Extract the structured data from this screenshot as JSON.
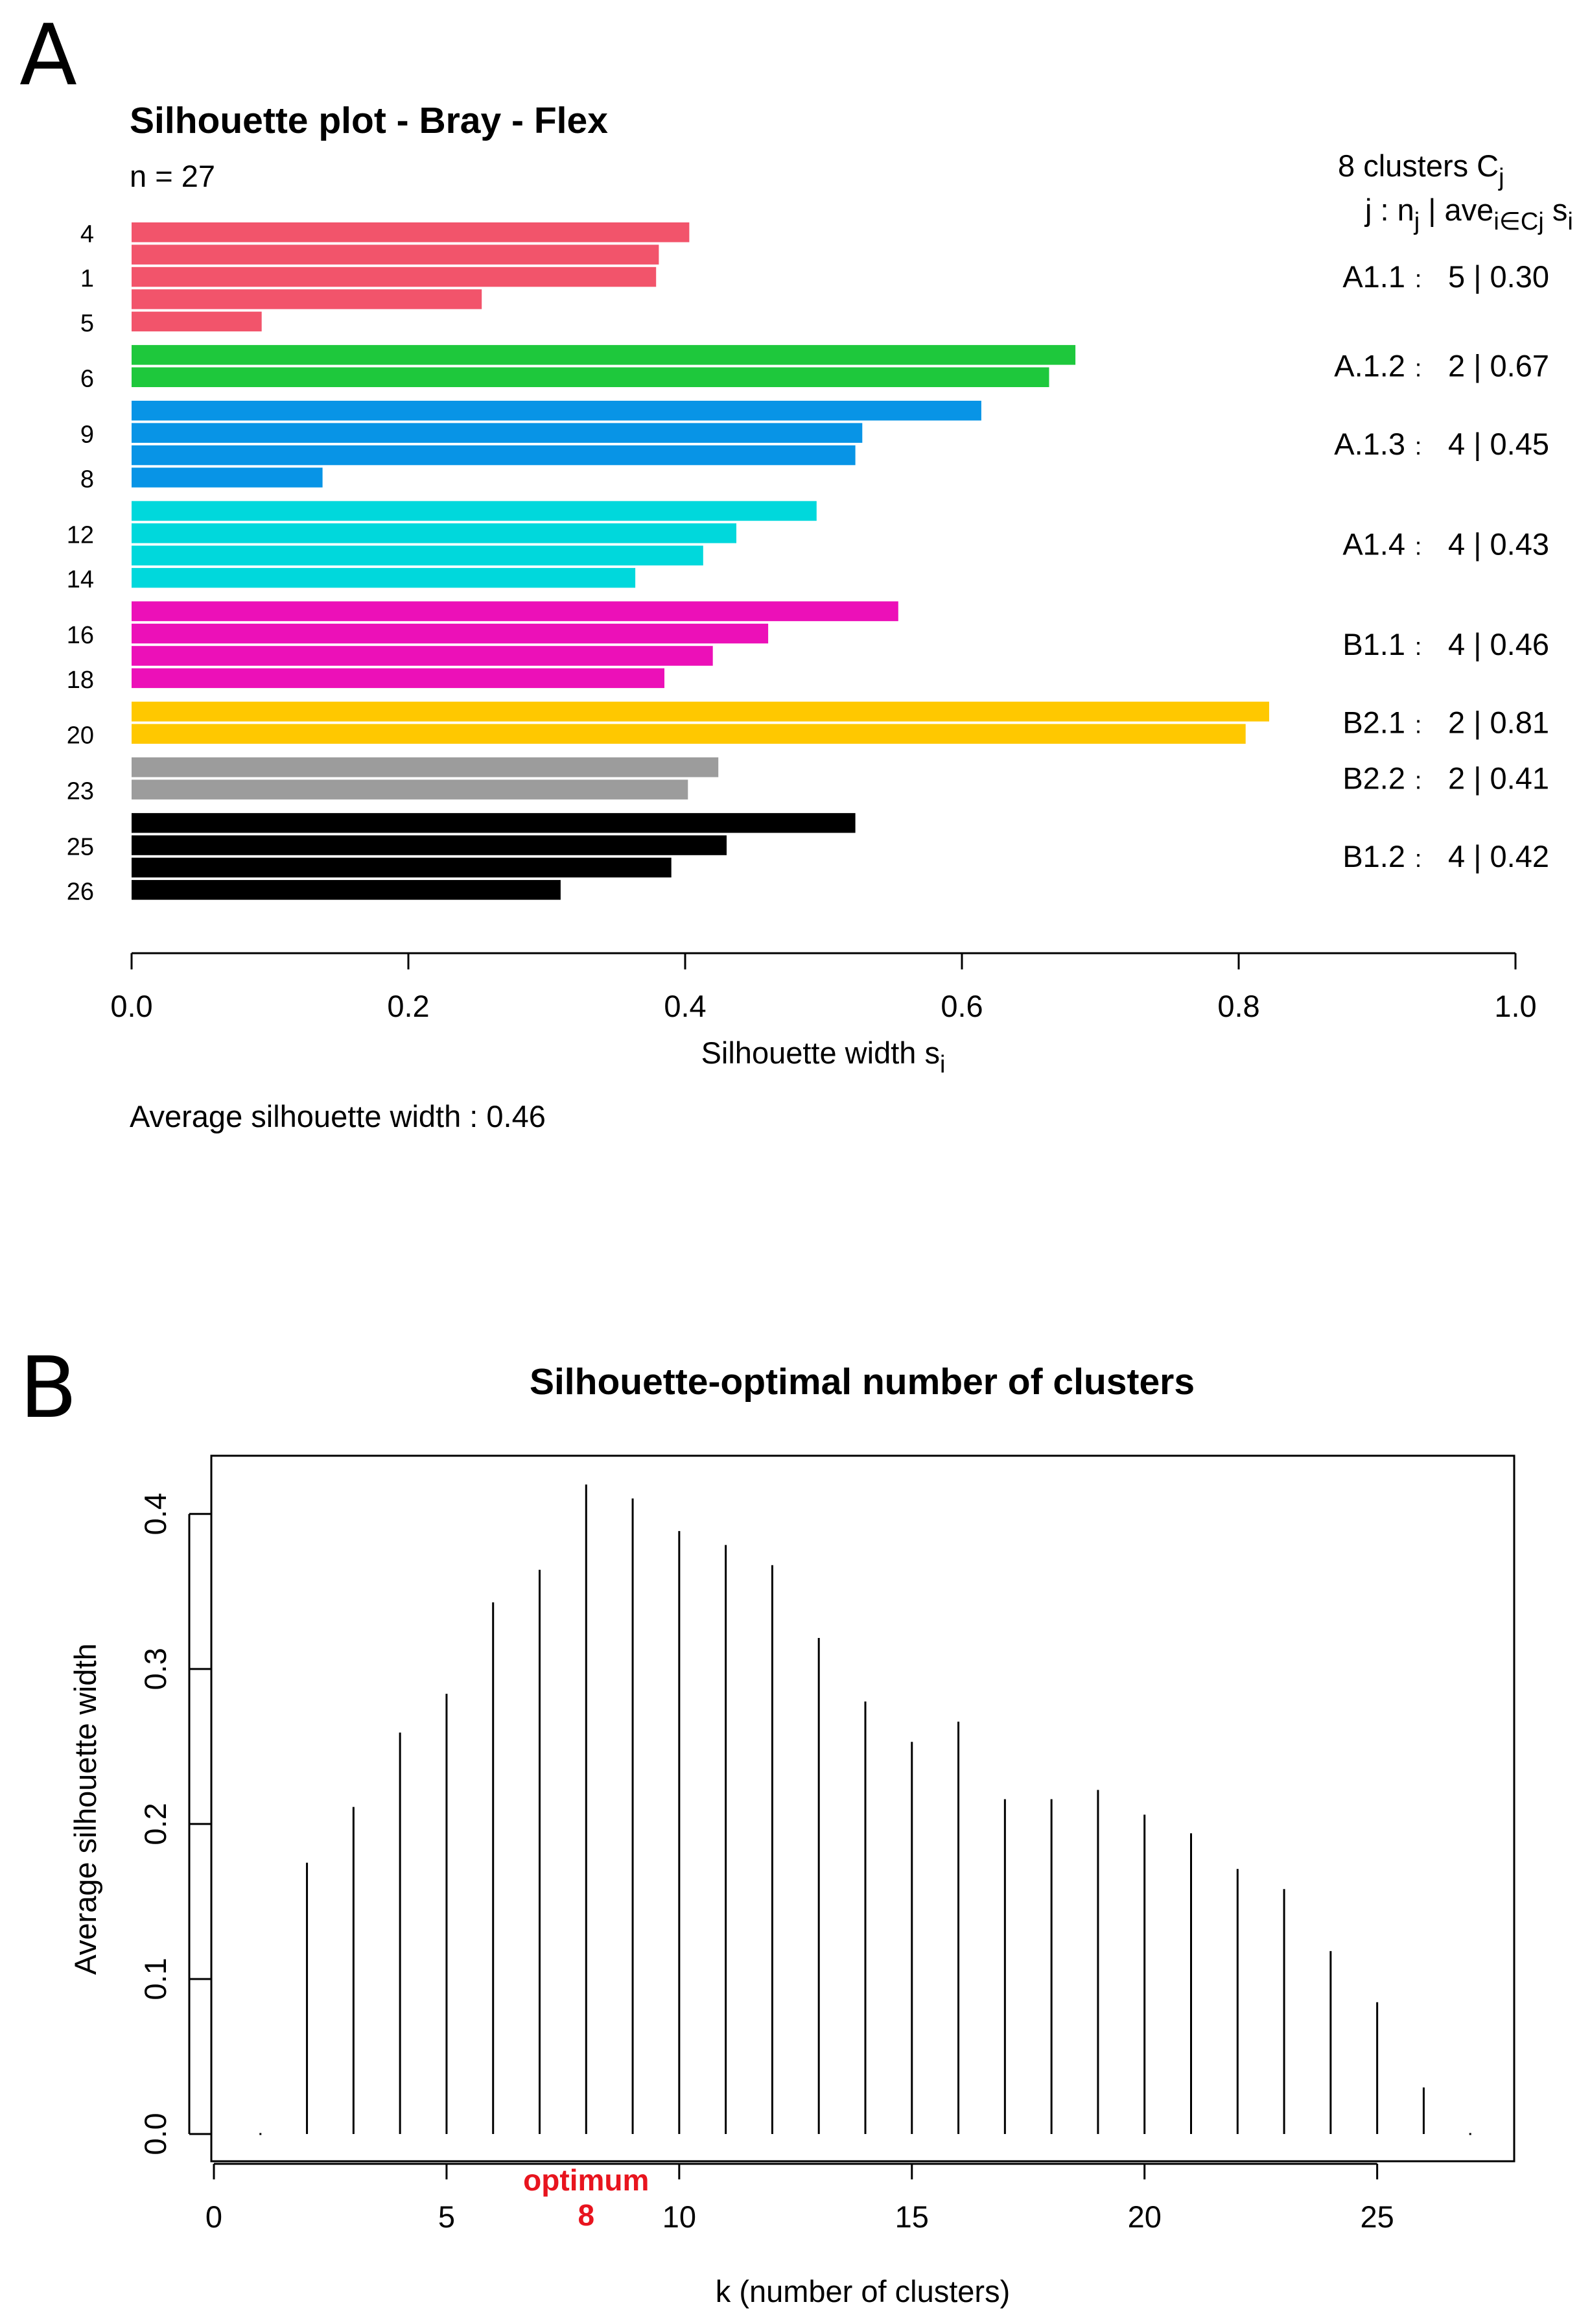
{
  "panels": {
    "a_letter": "A",
    "b_letter": "B"
  },
  "chart_data": [
    {
      "type": "bar",
      "orientation": "horizontal",
      "title": "Silhouette plot - Bray - Flex",
      "n_label": "n = 27",
      "xlabel": "Silhouette width s",
      "xlabel_sub": "i",
      "xlim": [
        0,
        1
      ],
      "xticks": [
        "0.0",
        "0.2",
        "0.4",
        "0.6",
        "0.8",
        "1.0"
      ],
      "legend_header": {
        "line1_prefix": "8  clusters  C",
        "line1_sub": "j",
        "line2_prefix": "j :  n",
        "line2_sub": "j",
        "line2_mid": " | ave",
        "line2_sub2": "i∈Cj",
        "line2_tail": " s",
        "line2_sub3": "i"
      },
      "clusters": [
        {
          "name": "A1.1",
          "sep": ":",
          "n": "5",
          "ave": "0.30",
          "color": "#f2546b",
          "values": [
            0.403,
            0.381,
            0.379,
            0.253,
            0.094
          ],
          "row_labels": [
            "4",
            "",
            "1",
            "",
            "5"
          ]
        },
        {
          "name": "A.1.2",
          "sep": ":",
          "n": "2",
          "ave": "0.67",
          "color": "#1ec83c",
          "values": [
            0.682,
            0.663
          ],
          "row_labels": [
            "",
            "6"
          ]
        },
        {
          "name": "A.1.3",
          "sep": ":",
          "n": "4",
          "ave": "0.45",
          "color": "#0894e6",
          "values": [
            0.614,
            0.528,
            0.523,
            0.138
          ],
          "row_labels": [
            "",
            "9",
            "",
            "8"
          ]
        },
        {
          "name": "A1.4",
          "sep": ":",
          "n": "4",
          "ave": "0.43",
          "color": "#00d8dc",
          "values": [
            0.495,
            0.437,
            0.413,
            0.364
          ],
          "row_labels": [
            "",
            "12",
            "",
            "14"
          ]
        },
        {
          "name": "B1.1",
          "sep": ":",
          "n": "4",
          "ave": "0.46",
          "color": "#ec10b8",
          "values": [
            0.554,
            0.46,
            0.42,
            0.385
          ],
          "row_labels": [
            "",
            "16",
            "",
            "18"
          ]
        },
        {
          "name": "B2.1",
          "sep": ":",
          "n": "2",
          "ave": "0.81",
          "color": "#ffc800",
          "values": [
            0.822,
            0.805
          ],
          "row_labels": [
            "",
            "20"
          ]
        },
        {
          "name": "B2.2",
          "sep": ":",
          "n": "2",
          "ave": "0.41",
          "color": "#9c9c9c",
          "values": [
            0.424,
            0.402
          ],
          "row_labels": [
            "",
            "23"
          ]
        },
        {
          "name": "B1.2",
          "sep": ":",
          "n": "4",
          "ave": "0.42",
          "color": "#000000",
          "values": [
            0.523,
            0.43,
            0.39,
            0.31
          ],
          "row_labels": [
            "",
            "25",
            "",
            "26"
          ]
        }
      ],
      "average_label": "Average silhouette width :  0.46"
    },
    {
      "type": "bar",
      "style": "spike",
      "title": "Silhouette-optimal number of clusters",
      "xlabel": "k (number of clusters)",
      "ylabel": "Average silhouette width",
      "xlim": [
        0,
        28
      ],
      "ylim": [
        0,
        0.42
      ],
      "xticks": [
        0,
        5,
        10,
        15,
        20,
        25
      ],
      "yticks": [
        "0.0",
        "0.1",
        "0.2",
        "0.3",
        "0.4"
      ],
      "x": [
        1,
        2,
        3,
        4,
        5,
        6,
        7,
        8,
        9,
        10,
        11,
        12,
        13,
        14,
        15,
        16,
        17,
        18,
        19,
        20,
        21,
        22,
        23,
        24,
        25,
        26,
        27
      ],
      "values": [
        0,
        0.175,
        0.211,
        0.259,
        0.284,
        0.343,
        0.364,
        0.419,
        0.41,
        0.389,
        0.38,
        0.367,
        0.32,
        0.279,
        0.253,
        0.266,
        0.216,
        0.216,
        0.222,
        0.206,
        0.194,
        0.171,
        0.158,
        0.118,
        0.085,
        0.03,
        0
      ],
      "optimum_label": "optimum",
      "optimum_k": "8"
    }
  ]
}
